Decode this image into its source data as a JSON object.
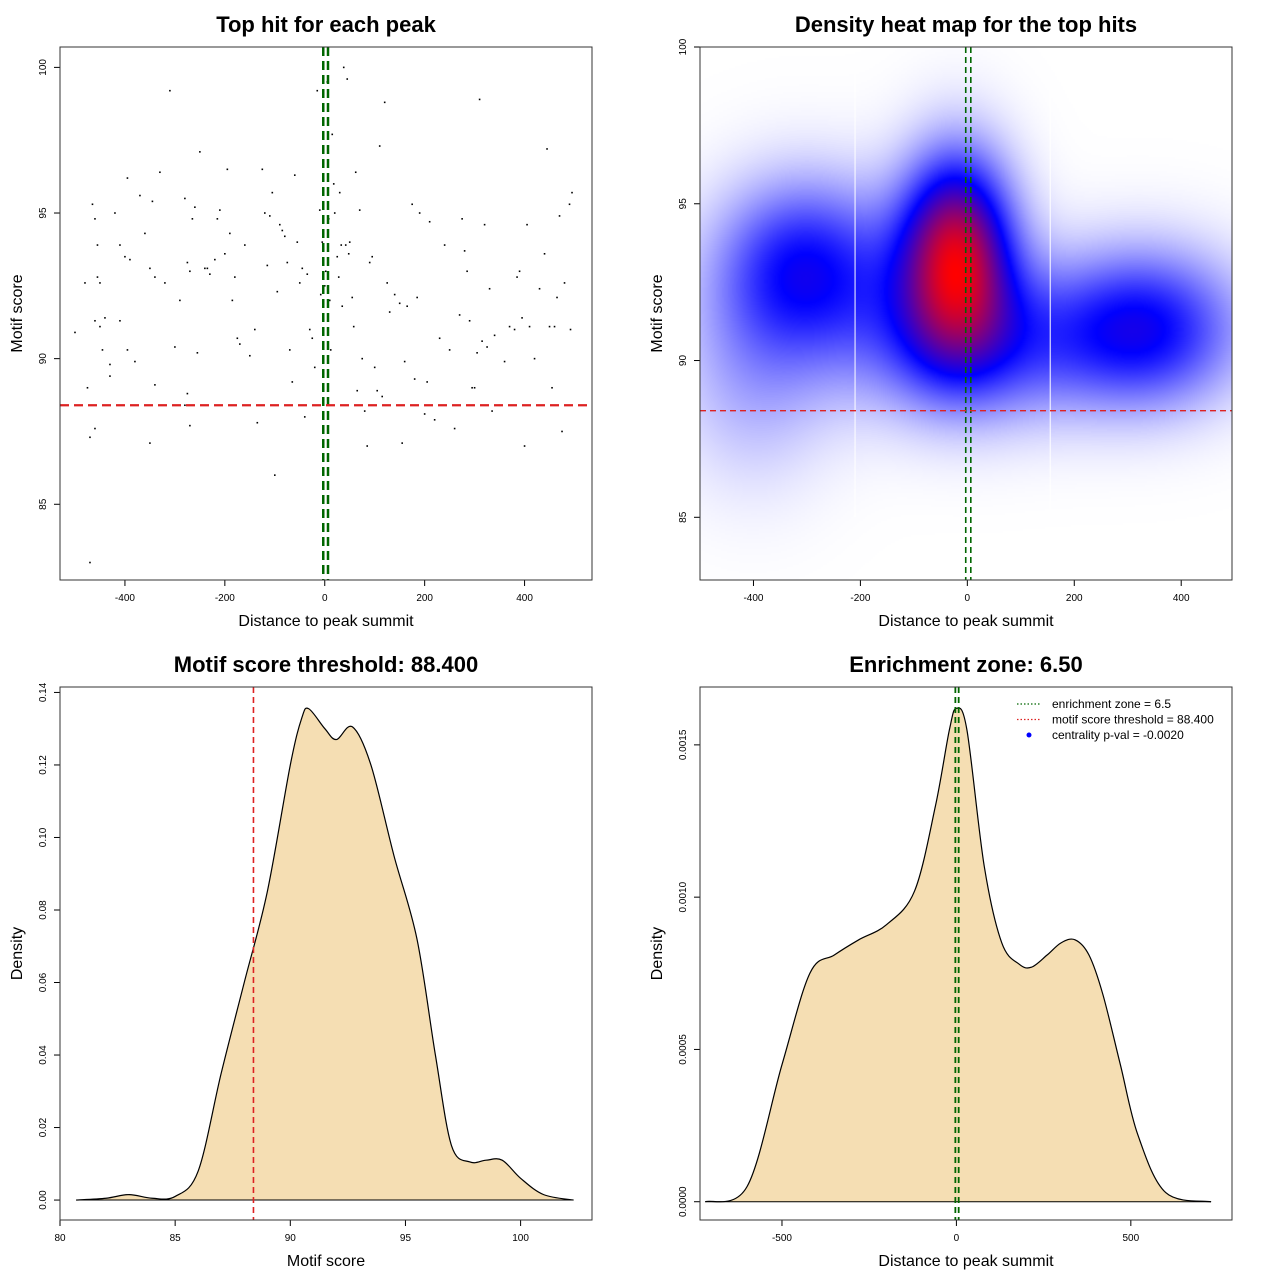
{
  "chart_data": [
    {
      "type": "scatter",
      "title": "Top hit for each peak",
      "xlabel": "Distance to peak summit",
      "ylabel": "Motif score",
      "xlim": [
        -530,
        535
      ],
      "ylim": [
        82.4,
        100.7
      ],
      "x_ticks": [
        -400,
        -200,
        0,
        200,
        400
      ],
      "y_ticks": [
        85,
        90,
        95,
        100
      ],
      "hlines": [
        {
          "y": 88.4,
          "color": "#dd2222"
        }
      ],
      "vlines": [
        {
          "x": -3,
          "color": "#006600"
        },
        {
          "x": 6.5,
          "color": "#006600"
        }
      ],
      "points": [
        [
          -470,
          83.0
        ],
        [
          -470,
          87.3
        ],
        [
          -460,
          87.6
        ],
        [
          -455,
          92.8
        ],
        [
          -450,
          92.6
        ],
        [
          -460,
          91.3
        ],
        [
          -450,
          91.1
        ],
        [
          -440,
          91.4
        ],
        [
          -445,
          90.3
        ],
        [
          -430,
          89.8
        ],
        [
          -430,
          89.4
        ],
        [
          -500,
          90.9
        ],
        [
          -480,
          92.6
        ],
        [
          -475,
          89.0
        ],
        [
          -465,
          95.3
        ],
        [
          -460,
          94.8
        ],
        [
          -455,
          93.9
        ],
        [
          -420,
          95.0
        ],
        [
          -410,
          93.9
        ],
        [
          -400,
          93.5
        ],
        [
          -395,
          96.2
        ],
        [
          -390,
          93.4
        ],
        [
          -410,
          91.3
        ],
        [
          -395,
          90.3
        ],
        [
          -380,
          89.9
        ],
        [
          -370,
          95.6
        ],
        [
          -360,
          94.3
        ],
        [
          -350,
          93.1
        ],
        [
          -340,
          92.8
        ],
        [
          -330,
          96.4
        ],
        [
          -320,
          92.6
        ],
        [
          -310,
          99.2
        ],
        [
          -350,
          87.1
        ],
        [
          -340,
          89.1
        ],
        [
          -345,
          95.4
        ],
        [
          -300,
          90.4
        ],
        [
          -290,
          92.0
        ],
        [
          -280,
          95.5
        ],
        [
          -275,
          93.3
        ],
        [
          -270,
          93.0
        ],
        [
          -265,
          94.8
        ],
        [
          -260,
          95.2
        ],
        [
          -280,
          88.4
        ],
        [
          -275,
          88.8
        ],
        [
          -270,
          87.7
        ],
        [
          -255,
          90.2
        ],
        [
          -250,
          97.1
        ],
        [
          -240,
          93.1
        ],
        [
          -235,
          93.1
        ],
        [
          -230,
          92.9
        ],
        [
          -220,
          93.4
        ],
        [
          -215,
          94.8
        ],
        [
          -210,
          95.1
        ],
        [
          -200,
          93.6
        ],
        [
          -195,
          96.5
        ],
        [
          -190,
          94.3
        ],
        [
          -185,
          92.0
        ],
        [
          -180,
          92.8
        ],
        [
          -175,
          90.7
        ],
        [
          -170,
          90.5
        ],
        [
          -160,
          93.9
        ],
        [
          -150,
          90.1
        ],
        [
          -140,
          91.0
        ],
        [
          -135,
          87.8
        ],
        [
          -125,
          96.5
        ],
        [
          -120,
          95.0
        ],
        [
          -115,
          93.2
        ],
        [
          -110,
          94.9
        ],
        [
          -105,
          95.7
        ],
        [
          -100,
          86.0
        ],
        [
          -95,
          92.3
        ],
        [
          -90,
          94.6
        ],
        [
          -85,
          94.4
        ],
        [
          -80,
          94.2
        ],
        [
          -75,
          93.3
        ],
        [
          -70,
          90.3
        ],
        [
          -65,
          89.2
        ],
        [
          -60,
          96.3
        ],
        [
          -55,
          94.0
        ],
        [
          -50,
          92.6
        ],
        [
          -45,
          93.1
        ],
        [
          -40,
          88.0
        ],
        [
          -35,
          92.9
        ],
        [
          -30,
          91.0
        ],
        [
          -25,
          90.7
        ],
        [
          -20,
          89.7
        ],
        [
          -15,
          99.2
        ],
        [
          -10,
          95.1
        ],
        [
          -8,
          92.2
        ],
        [
          -5,
          94.0
        ],
        [
          -3,
          91.9
        ],
        [
          0,
          92.5
        ],
        [
          2,
          93.0
        ],
        [
          5,
          99.5
        ],
        [
          8,
          94.8
        ],
        [
          10,
          92.0
        ],
        [
          12,
          90.3
        ],
        [
          15,
          97.7
        ],
        [
          18,
          96.0
        ],
        [
          20,
          95.0
        ],
        [
          25,
          93.5
        ],
        [
          28,
          92.8
        ],
        [
          30,
          95.7
        ],
        [
          33,
          93.9
        ],
        [
          35,
          91.8
        ],
        [
          38,
          100.0
        ],
        [
          42,
          93.9
        ],
        [
          45,
          99.6
        ],
        [
          48,
          93.6
        ],
        [
          50,
          94.0
        ],
        [
          55,
          92.1
        ],
        [
          58,
          91.1
        ],
        [
          62,
          96.4
        ],
        [
          65,
          88.9
        ],
        [
          70,
          95.1
        ],
        [
          75,
          90.0
        ],
        [
          80,
          88.2
        ],
        [
          85,
          87.0
        ],
        [
          90,
          93.3
        ],
        [
          95,
          93.5
        ],
        [
          100,
          89.7
        ],
        [
          105,
          88.9
        ],
        [
          110,
          97.3
        ],
        [
          115,
          88.7
        ],
        [
          120,
          98.8
        ],
        [
          125,
          92.6
        ],
        [
          130,
          91.6
        ],
        [
          140,
          92.2
        ],
        [
          150,
          91.9
        ],
        [
          155,
          87.1
        ],
        [
          160,
          89.9
        ],
        [
          165,
          91.8
        ],
        [
          175,
          95.3
        ],
        [
          180,
          89.3
        ],
        [
          185,
          92.1
        ],
        [
          190,
          95.0
        ],
        [
          200,
          88.1
        ],
        [
          205,
          89.2
        ],
        [
          210,
          94.7
        ],
        [
          215,
          88.4
        ],
        [
          220,
          87.9
        ],
        [
          230,
          90.7
        ],
        [
          240,
          93.9
        ],
        [
          250,
          90.3
        ],
        [
          260,
          87.6
        ],
        [
          270,
          91.5
        ],
        [
          275,
          94.8
        ],
        [
          280,
          93.7
        ],
        [
          285,
          93.0
        ],
        [
          290,
          91.3
        ],
        [
          295,
          89.0
        ],
        [
          300,
          89.0
        ],
        [
          305,
          90.2
        ],
        [
          310,
          98.9
        ],
        [
          315,
          90.6
        ],
        [
          320,
          94.6
        ],
        [
          325,
          90.4
        ],
        [
          330,
          92.4
        ],
        [
          335,
          88.2
        ],
        [
          340,
          90.8
        ],
        [
          350,
          88.4
        ],
        [
          360,
          89.9
        ],
        [
          370,
          91.1
        ],
        [
          380,
          91.0
        ],
        [
          385,
          92.8
        ],
        [
          390,
          93.0
        ],
        [
          395,
          91.4
        ],
        [
          400,
          87.0
        ],
        [
          405,
          94.6
        ],
        [
          410,
          91.1
        ],
        [
          420,
          90.0
        ],
        [
          430,
          92.4
        ],
        [
          440,
          93.6
        ],
        [
          445,
          97.2
        ],
        [
          450,
          91.1
        ],
        [
          455,
          89.0
        ],
        [
          460,
          91.1
        ],
        [
          465,
          92.1
        ],
        [
          470,
          94.9
        ],
        [
          475,
          87.5
        ],
        [
          480,
          92.6
        ],
        [
          490,
          95.3
        ],
        [
          492,
          91.0
        ],
        [
          495,
          95.7
        ]
      ]
    },
    {
      "type": "heatmap",
      "title": "Density heat map for the top hits",
      "xlabel": "Distance to peak summit",
      "ylabel": "Motif score",
      "xlim": [
        -500,
        495
      ],
      "ylim": [
        83.0,
        100.0
      ],
      "x_ticks": [
        -400,
        -200,
        0,
        200,
        400
      ],
      "y_ticks": [
        85,
        90,
        95,
        100
      ],
      "hlines": [
        {
          "y": 88.4,
          "color": "#dd2222"
        }
      ],
      "vlines": [
        {
          "x": -3,
          "color": "#006600"
        },
        {
          "x": 6.5,
          "color": "#006600"
        }
      ],
      "grid_lines_x": [
        -210,
        155
      ],
      "colors": [
        "#ffffff",
        "#0000ff",
        "#ff0000"
      ],
      "density_centers": [
        {
          "x": -20,
          "y": 93.5,
          "sx": 75,
          "sy": 2.2,
          "w": 1.0
        },
        {
          "x": -300,
          "y": 93.0,
          "sx": 120,
          "sy": 2.0,
          "w": 0.55
        },
        {
          "x": 330,
          "y": 91.0,
          "sx": 130,
          "sy": 1.8,
          "w": 0.6
        },
        {
          "x": 0,
          "y": 90.5,
          "sx": 150,
          "sy": 1.8,
          "w": 0.45
        },
        {
          "x": -400,
          "y": 89.5,
          "sx": 110,
          "sy": 2.5,
          "w": 0.2
        }
      ]
    },
    {
      "type": "area",
      "title": "Motif score threshold: 88.400",
      "xlabel": "Motif score",
      "ylabel": "Density",
      "xlim": [
        80.0,
        103.1
      ],
      "ylim": [
        -0.0055,
        0.1415
      ],
      "x_ticks": [
        80,
        85,
        90,
        95,
        100
      ],
      "y_ticks": [
        0.0,
        0.02,
        0.04,
        0.06,
        0.08,
        0.1,
        0.12,
        0.14
      ],
      "fill": "#f5deb3",
      "vlines": [
        {
          "x": 88.4,
          "color": "#dd2222"
        }
      ],
      "x": [
        80.7,
        82.0,
        83.0,
        84.0,
        85.0,
        86.0,
        87.0,
        88.0,
        89.0,
        90.0,
        90.5,
        90.8,
        91.5,
        92.0,
        92.7,
        93.5,
        94.5,
        95.5,
        96.3,
        97.0,
        97.8,
        98.5,
        99.2,
        100.0,
        101.0,
        102.3
      ],
      "y": [
        0.0,
        0.0005,
        0.0015,
        0.0005,
        0.001,
        0.008,
        0.035,
        0.06,
        0.085,
        0.12,
        0.133,
        0.1355,
        0.13,
        0.127,
        0.1305,
        0.12,
        0.095,
        0.072,
        0.04,
        0.015,
        0.0105,
        0.011,
        0.011,
        0.006,
        0.0015,
        0.0
      ],
      "annotations": [],
      "curve_samples": "computed"
    },
    {
      "type": "area",
      "title": "Enrichment zone: 6.50",
      "xlabel": "Distance to peak summit",
      "ylabel": "Density",
      "xlim": [
        -735,
        790
      ],
      "ylim": [
        -6e-05,
        0.00169
      ],
      "x_ticks": [
        -500,
        0,
        500
      ],
      "y_ticks": [
        0.0,
        0.0005,
        0.001,
        0.0015
      ],
      "y_tick_labels": [
        "0.0000",
        "0.0005",
        "0.0010",
        "0.0015"
      ],
      "fill": "#f5deb3",
      "vlines": [
        {
          "x": -3,
          "color": "#006600"
        },
        {
          "x": 6.5,
          "color": "#006600"
        }
      ],
      "x": [
        -720,
        -600,
        -500,
        -420,
        -350,
        -280,
        -200,
        -120,
        -60,
        -20,
        0,
        30,
        80,
        130,
        180,
        215,
        260,
        300,
        340,
        380,
        420,
        470,
        520,
        600,
        730
      ],
      "y": [
        0.0,
        5e-05,
        0.00045,
        0.00075,
        0.00081,
        0.00086,
        0.00091,
        0.00102,
        0.0013,
        0.00155,
        0.00162,
        0.00155,
        0.0011,
        0.00085,
        0.00078,
        0.00077,
        0.00081,
        0.00085,
        0.00086,
        0.00081,
        0.00068,
        0.00045,
        0.00022,
        3e-05,
        0.0
      ],
      "legend": {
        "position": "top-right",
        "items": [
          {
            "label": "enrichment zone = 6.5",
            "color": "#006600",
            "style": "dotted-line"
          },
          {
            "label": "motif score threshold = 88.400",
            "color": "#dd2222",
            "style": "dotted-line"
          },
          {
            "label": "centrality p-val = -0.0020",
            "color": "#0000ff",
            "style": "point"
          }
        ]
      }
    }
  ]
}
